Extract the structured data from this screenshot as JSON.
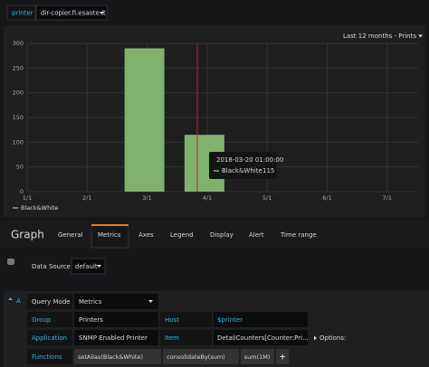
{
  "toolbar": {
    "variable_label": "printer",
    "variable_value": "dir-copier.fi.esaote.it"
  },
  "chart_data": {
    "type": "bar",
    "time_range": "Last 12 months - Prints",
    "categories": [
      "1/1",
      "2/1",
      "3/1",
      "4/1",
      "5/1",
      "6/1",
      "7/1"
    ],
    "series": [
      {
        "name": "Black&White",
        "color": "#7eb26d",
        "values": [
          null,
          null,
          290,
          115,
          null,
          null,
          null
        ]
      }
    ],
    "ylim": [
      0,
      300
    ],
    "yticks": [
      0,
      50,
      100,
      150,
      200,
      250,
      300
    ],
    "grid": true,
    "tooltip_time": "2018-03-20 01:00:00"
  },
  "editor": {
    "title": "Graph",
    "tabs": [
      "General",
      "Metrics",
      "Axes",
      "Legend",
      "Display",
      "Alert",
      "Time range"
    ],
    "active_tab": 1,
    "data_source_label": "Data Source",
    "data_source": "default",
    "query": {
      "letter": "A",
      "mode_label": "Query Mode",
      "mode": "Metrics",
      "group_label": "Group",
      "group": "Printers",
      "host_label": "Host",
      "host": "$printer",
      "application_label": "Application",
      "application": "SNMP Enabled Printer",
      "item_label": "Item",
      "item": "DetailCounters[Counter:Pri...",
      "options": "Options:",
      "functions_label": "Functions",
      "functions": [
        "setAlias(Black&White)",
        "consolidateBy(sum)",
        "sum(1M)"
      ],
      "add": "+"
    }
  }
}
